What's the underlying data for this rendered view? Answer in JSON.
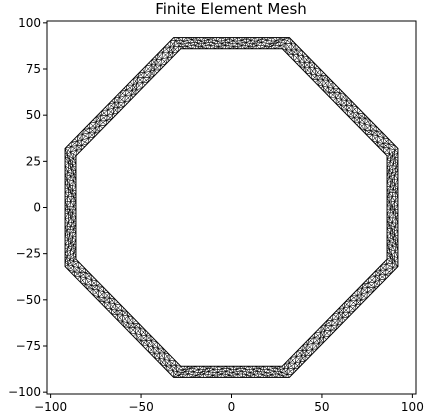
{
  "title": "Finite Element Mesh",
  "chart_data": {
    "type": "scatter",
    "description_free": true,
    "xlim": [
      -102,
      102
    ],
    "ylim": [
      -101,
      101
    ],
    "grid": false,
    "x_ticks": [
      -100,
      -50,
      0,
      50,
      100
    ],
    "x_tick_labels": [
      "−100",
      "−50",
      "0",
      "50",
      "100"
    ],
    "y_ticks": [
      100,
      75,
      50,
      25,
      0,
      -25,
      -50,
      -75,
      -100
    ],
    "y_tick_labels": [
      "100",
      "75",
      "50",
      "25",
      "0",
      "−25",
      "−50",
      "−75",
      "−100"
    ],
    "mesh": {
      "outer_vertices": [
        [
          32,
          92
        ],
        [
          92,
          32
        ],
        [
          92,
          -32
        ],
        [
          32,
          -92
        ],
        [
          -32,
          -92
        ],
        [
          -92,
          -32
        ],
        [
          -92,
          32
        ],
        [
          -32,
          92
        ]
      ],
      "inner_vertices": [
        [
          28,
          86
        ],
        [
          86,
          28
        ],
        [
          86,
          -28
        ],
        [
          28,
          -86
        ],
        [
          -28,
          -86
        ],
        [
          -86,
          -28
        ],
        [
          -86,
          28
        ],
        [
          -28,
          86
        ]
      ],
      "element_color": "#000000",
      "fill_color": "#ffffff"
    }
  }
}
